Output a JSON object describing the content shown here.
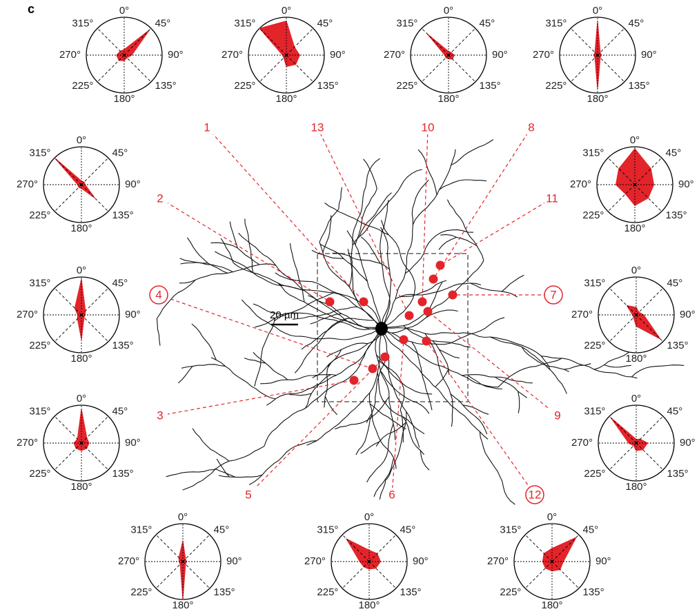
{
  "panel": "c",
  "scale_bar": "20 µm",
  "sites": [
    {
      "label": "1",
      "circled": false
    },
    {
      "label": "13",
      "circled": false
    },
    {
      "label": "10",
      "circled": false
    },
    {
      "label": "8",
      "circled": false
    },
    {
      "label": "11",
      "circled": false
    },
    {
      "label": "2",
      "circled": false
    },
    {
      "label": "7",
      "circled": true
    },
    {
      "label": "4",
      "circled": true
    },
    {
      "label": "9",
      "circled": false
    },
    {
      "label": "3",
      "circled": false
    },
    {
      "label": "5",
      "circled": false
    },
    {
      "label": "6",
      "circled": false
    },
    {
      "label": "12",
      "circled": true
    }
  ],
  "chart_data": [
    {
      "type": "radar",
      "categories": [
        "0°",
        "45°",
        "90°",
        "135°",
        "180°",
        "225°",
        "270°",
        "315°"
      ],
      "values": [
        0.15,
        0.95,
        0.2,
        0.1,
        0.15,
        0.2,
        0.2,
        0.15
      ],
      "rlim": [
        0,
        1
      ],
      "color": "#e3242b"
    },
    {
      "type": "radar",
      "categories": [
        "0°",
        "45°",
        "90°",
        "135°",
        "180°",
        "225°",
        "270°",
        "315°"
      ],
      "values": [
        0.9,
        0.3,
        0.35,
        0.35,
        0.3,
        0.1,
        0.1,
        1.0
      ],
      "rlim": [
        0,
        1
      ],
      "color": "#e3242b"
    },
    {
      "type": "radar",
      "categories": [
        "0°",
        "45°",
        "90°",
        "135°",
        "180°",
        "225°",
        "270°",
        "315°"
      ],
      "values": [
        0.1,
        0.1,
        0.15,
        0.15,
        0.1,
        0.1,
        0.1,
        0.8
      ],
      "rlim": [
        0,
        1
      ],
      "color": "#e3242b"
    },
    {
      "type": "radar",
      "categories": [
        "0°",
        "45°",
        "90°",
        "135°",
        "180°",
        "225°",
        "270°",
        "315°"
      ],
      "values": [
        0.9,
        0.1,
        0.1,
        0.1,
        0.9,
        0.1,
        0.1,
        0.1
      ],
      "rlim": [
        0,
        1
      ],
      "color": "#e3242b"
    },
    {
      "type": "radar",
      "categories": [
        "0°",
        "45°",
        "90°",
        "135°",
        "180°",
        "225°",
        "270°",
        "315°"
      ],
      "values": [
        0.1,
        0.1,
        0.1,
        0.5,
        0.1,
        0.1,
        0.1,
        1.0
      ],
      "rlim": [
        0,
        1
      ],
      "color": "#e3242b"
    },
    {
      "type": "radar",
      "categories": [
        "0°",
        "45°",
        "90°",
        "135°",
        "180°",
        "225°",
        "270°",
        "315°"
      ],
      "values": [
        0.95,
        0.15,
        0.1,
        0.1,
        0.65,
        0.15,
        0.1,
        0.25
      ],
      "rlim": [
        0,
        1
      ],
      "color": "#e3242b"
    },
    {
      "type": "radar",
      "categories": [
        "0°",
        "45°",
        "90°",
        "135°",
        "180°",
        "225°",
        "270°",
        "315°"
      ],
      "values": [
        0.9,
        0.2,
        0.2,
        0.2,
        0.2,
        0.2,
        0.2,
        0.15
      ],
      "rlim": [
        0,
        1
      ],
      "color": "#e3242b"
    },
    {
      "type": "radar",
      "categories": [
        "0°",
        "45°",
        "90°",
        "135°",
        "180°",
        "225°",
        "270°",
        "315°"
      ],
      "values": [
        0.95,
        0.6,
        0.5,
        0.5,
        0.55,
        0.35,
        0.5,
        0.6
      ],
      "rlim": [
        0,
        1
      ],
      "color": "#e3242b"
    },
    {
      "type": "radar",
      "categories": [
        "0°",
        "45°",
        "90°",
        "135°",
        "180°",
        "225°",
        "270°",
        "315°"
      ],
      "values": [
        0.2,
        0.1,
        0.2,
        0.9,
        0.3,
        0.1,
        0.1,
        0.35
      ],
      "rlim": [
        0,
        1
      ],
      "color": "#e3242b"
    },
    {
      "type": "radar",
      "categories": [
        "0°",
        "45°",
        "90°",
        "135°",
        "180°",
        "225°",
        "270°",
        "315°"
      ],
      "values": [
        0.1,
        0.15,
        0.3,
        0.25,
        0.2,
        0.1,
        0.2,
        0.95
      ],
      "rlim": [
        0,
        1
      ],
      "color": "#e3242b"
    },
    {
      "type": "radar",
      "categories": [
        "0°",
        "45°",
        "90°",
        "135°",
        "180°",
        "225°",
        "270°",
        "315°"
      ],
      "values": [
        0.55,
        0.1,
        0.1,
        0.1,
        1.0,
        0.1,
        0.1,
        0.15
      ],
      "rlim": [
        0,
        1
      ],
      "color": "#e3242b"
    },
    {
      "type": "radar",
      "categories": [
        "0°",
        "45°",
        "90°",
        "135°",
        "180°",
        "225°",
        "270°",
        "315°"
      ],
      "values": [
        0.3,
        0.3,
        0.3,
        0.25,
        0.2,
        0.2,
        0.25,
        0.85
      ],
      "rlim": [
        0,
        1
      ],
      "color": "#e3242b"
    },
    {
      "type": "radar",
      "categories": [
        "0°",
        "45°",
        "90°",
        "135°",
        "180°",
        "225°",
        "270°",
        "315°"
      ],
      "values": [
        0.35,
        0.9,
        0.3,
        0.3,
        0.25,
        0.25,
        0.25,
        0.3
      ],
      "rlim": [
        0,
        1
      ],
      "color": "#e3242b"
    }
  ]
}
